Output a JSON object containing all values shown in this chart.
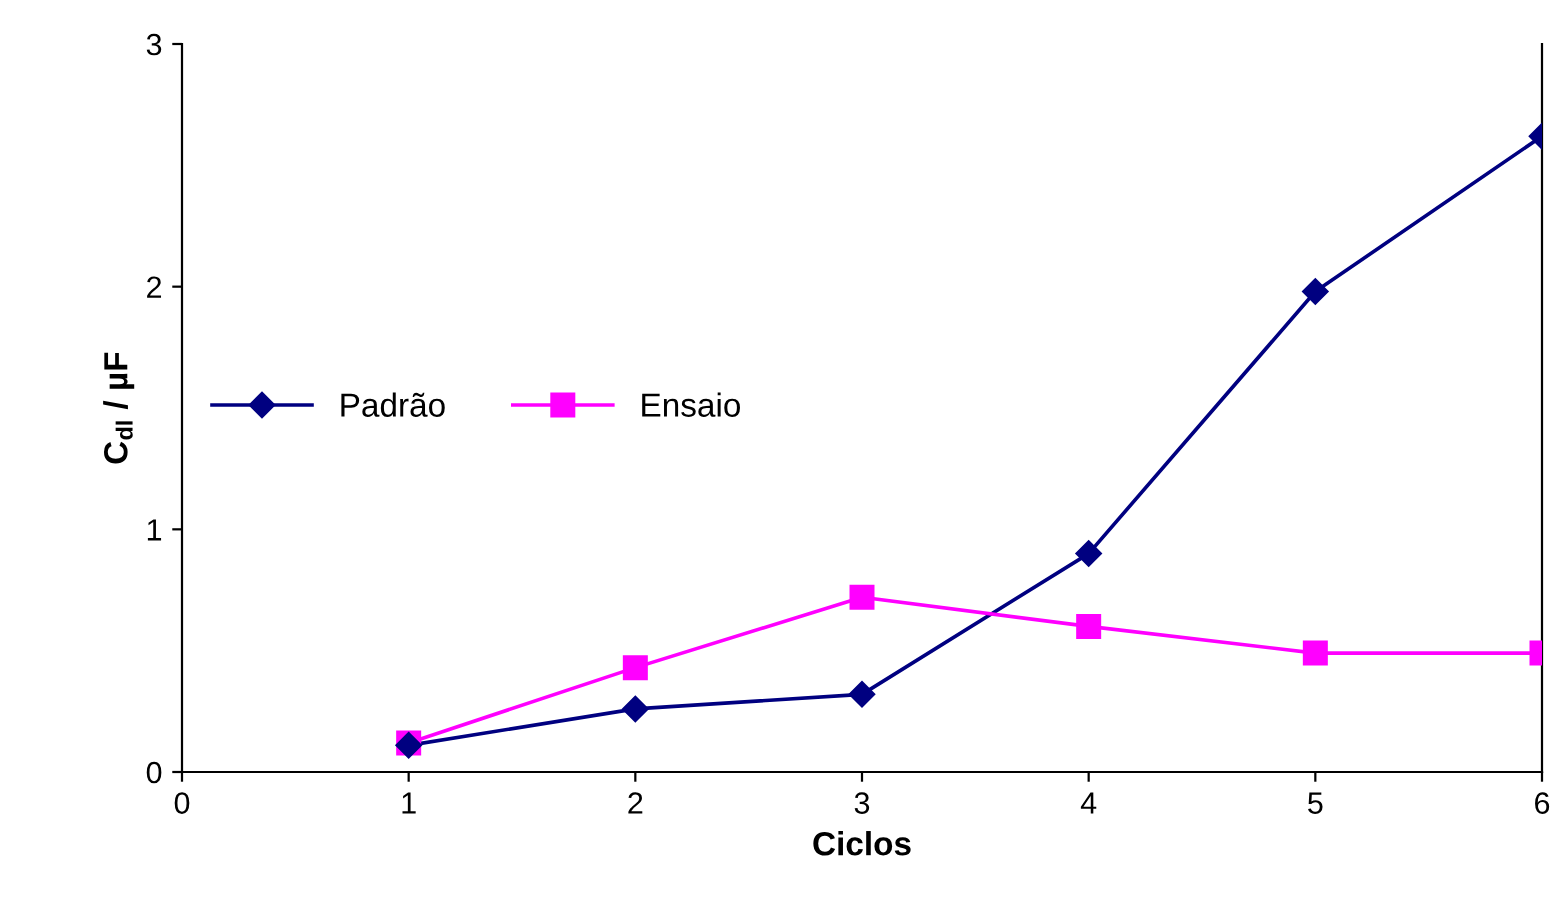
{
  "chart_data": {
    "type": "line",
    "xlabel": "Ciclos",
    "ylabel": "C$_{dl}$ / µF",
    "x": [
      1,
      2,
      3,
      4,
      5,
      6
    ],
    "series": [
      {
        "name": "Padrão",
        "color": "#000080",
        "marker": "diamond",
        "values": [
          0.11,
          0.26,
          0.32,
          0.9,
          1.98,
          2.62
        ]
      },
      {
        "name": "Ensaio",
        "color": "#ff00ff",
        "marker": "square",
        "values": [
          0.12,
          0.43,
          0.72,
          0.6,
          0.49,
          0.49
        ]
      }
    ],
    "xlim": [
      0,
      6
    ],
    "xticks": [
      0,
      1,
      2,
      3,
      4,
      5,
      6
    ],
    "ylim": [
      0,
      3
    ],
    "yticks": [
      0,
      1,
      2,
      3
    ],
    "grid": false,
    "legend": "center left",
    "line_style": "solid"
  }
}
